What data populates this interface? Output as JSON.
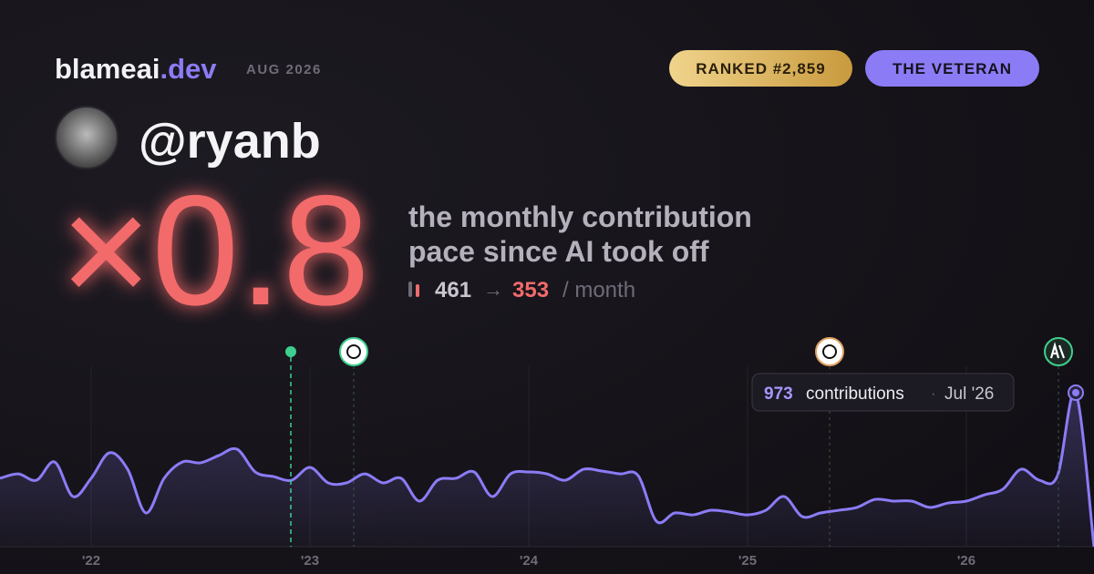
{
  "brand": {
    "name": "blameai",
    "tld": ".dev",
    "date": "AUG 2026"
  },
  "badges": {
    "rank": "RANKED #2,859",
    "persona": "THE VETERAN"
  },
  "user": {
    "handle": "@ryanb"
  },
  "headline": {
    "multiplier": "×0.8",
    "line1": "the monthly contribution",
    "line2": "pace since AI took off"
  },
  "pace": {
    "before": 461,
    "arrow": "→",
    "after": 353,
    "unit": "/ month"
  },
  "tooltip": {
    "unit": "contributions",
    "separator": "·",
    "date": "Jul '26"
  },
  "chart_data": {
    "type": "line",
    "color": "#8b7cf6",
    "categories": [
      null,
      null,
      null,
      null,
      null,
      "'22",
      null,
      null,
      null,
      null,
      null,
      null,
      null,
      null,
      null,
      null,
      null,
      "'23",
      null,
      null,
      null,
      null,
      null,
      null,
      null,
      null,
      null,
      null,
      null,
      "'24",
      null,
      null,
      null,
      null,
      null,
      null,
      null,
      null,
      null,
      null,
      null,
      "'25",
      null,
      null,
      null,
      null,
      null,
      null,
      null,
      null,
      null,
      null,
      null,
      "'26",
      null,
      null,
      null,
      null,
      null,
      null,
      null
    ],
    "values": [
      432,
      460,
      420,
      535,
      317,
      432,
      593,
      489,
      213,
      432,
      535,
      530,
      576,
      616,
      472,
      443,
      420,
      501,
      403,
      403,
      460,
      403,
      432,
      288,
      420,
      432,
      472,
      317,
      460,
      472,
      460,
      420,
      489,
      478,
      460,
      449,
      161,
      213,
      201,
      230,
      219,
      201,
      230,
      317,
      190,
      213,
      230,
      248,
      299,
      288,
      288,
      248,
      276,
      288,
      328,
      363,
      489,
      420,
      449,
      973,
      0
    ],
    "ylim": [
      0,
      1140
    ]
  }
}
